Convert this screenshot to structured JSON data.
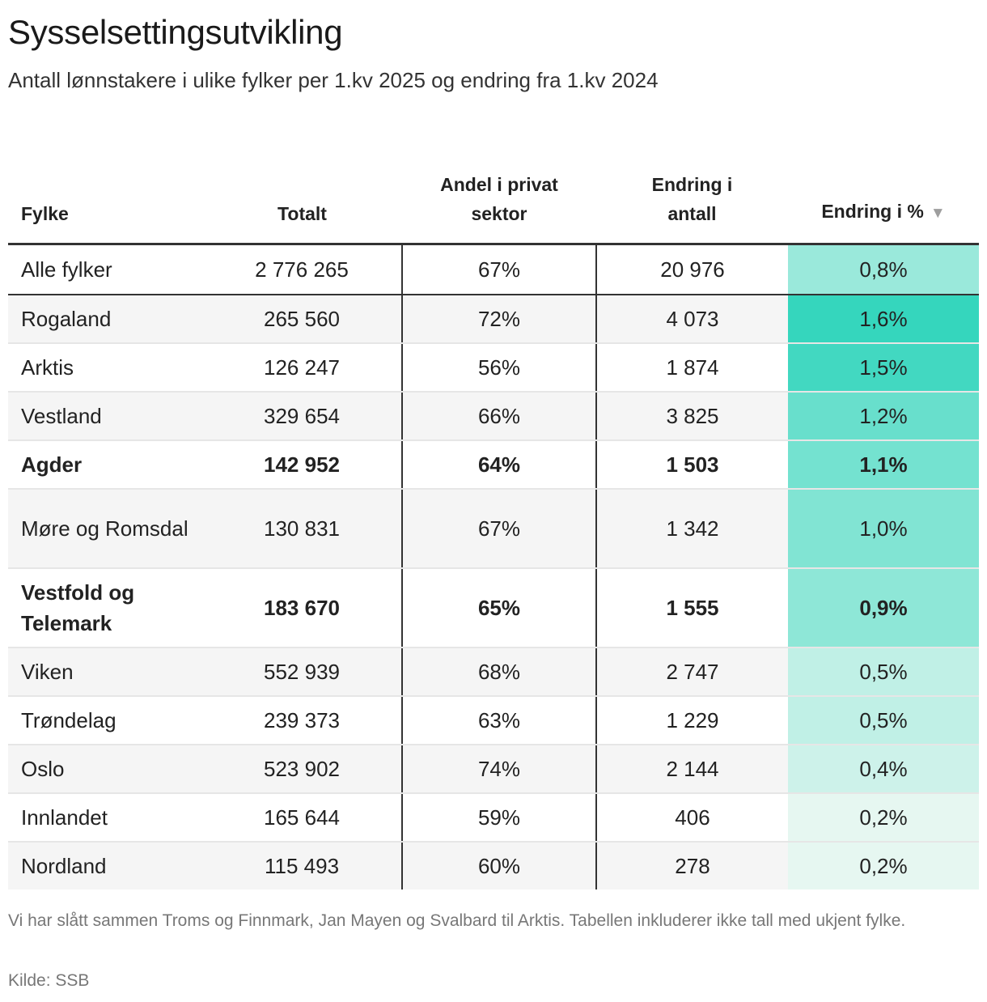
{
  "title": "Sysselsettingsutvikling",
  "subtitle": "Antall lønnstakere i ulike fylker per 1.kv 2025 og endring fra 1.kv 2024",
  "columns": [
    "Fylke",
    "Totalt",
    "Andel i privat sektor",
    "Endring i antall",
    "Endring i %"
  ],
  "sort_icon": "triangle-down",
  "chart_data": {
    "type": "table",
    "sort": {
      "column": "Endring i %",
      "order": "descending"
    },
    "heat_color_min": "#e6f7f1",
    "heat_color_max": "#35d6bd",
    "rows": [
      {
        "fylke": "Alle fylker",
        "totalt": "2 776 265",
        "andel": "67%",
        "endring_antall": "20 976",
        "endring_pct": "0,8%",
        "pct_value": 0.8,
        "bold": false,
        "total": true
      },
      {
        "fylke": "Rogaland",
        "totalt": "265 560",
        "andel": "72%",
        "endring_antall": "4 073",
        "endring_pct": "1,6%",
        "pct_value": 1.6,
        "bold": false
      },
      {
        "fylke": "Arktis",
        "totalt": "126 247",
        "andel": "56%",
        "endring_antall": "1 874",
        "endring_pct": "1,5%",
        "pct_value": 1.5,
        "bold": false
      },
      {
        "fylke": "Vestland",
        "totalt": "329 654",
        "andel": "66%",
        "endring_antall": "3 825",
        "endring_pct": "1,2%",
        "pct_value": 1.2,
        "bold": false
      },
      {
        "fylke": "Agder",
        "totalt": "142 952",
        "andel": "64%",
        "endring_antall": "1 503",
        "endring_pct": "1,1%",
        "pct_value": 1.1,
        "bold": true
      },
      {
        "fylke": "Møre og Romsdal",
        "totalt": "130 831",
        "andel": "67%",
        "endring_antall": "1 342",
        "endring_pct": "1,0%",
        "pct_value": 1.0,
        "bold": false,
        "tall": true
      },
      {
        "fylke": "Vestfold og Telemark",
        "totalt": "183 670",
        "andel": "65%",
        "endring_antall": "1 555",
        "endring_pct": "0,9%",
        "pct_value": 0.9,
        "bold": true,
        "tall": true
      },
      {
        "fylke": "Viken",
        "totalt": "552 939",
        "andel": "68%",
        "endring_antall": "2 747",
        "endring_pct": "0,5%",
        "pct_value": 0.5,
        "bold": false
      },
      {
        "fylke": "Trøndelag",
        "totalt": "239 373",
        "andel": "63%",
        "endring_antall": "1 229",
        "endring_pct": "0,5%",
        "pct_value": 0.5,
        "bold": false
      },
      {
        "fylke": "Oslo",
        "totalt": "523 902",
        "andel": "74%",
        "endring_antall": "2 144",
        "endring_pct": "0,4%",
        "pct_value": 0.4,
        "bold": false
      },
      {
        "fylke": "Innlandet",
        "totalt": "165 644",
        "andel": "59%",
        "endring_antall": "406",
        "endring_pct": "0,2%",
        "pct_value": 0.2,
        "bold": false
      },
      {
        "fylke": "Nordland",
        "totalt": "115 493",
        "andel": "60%",
        "endring_antall": "278",
        "endring_pct": "0,2%",
        "pct_value": 0.2,
        "bold": false
      }
    ]
  },
  "footnote": "Vi har slått sammen Troms og Finnmark, Jan Mayen og Svalbard til Arktis. Tabellen inkluderer ikke tall med ukjent fylke.",
  "source": "Kilde: SSB"
}
